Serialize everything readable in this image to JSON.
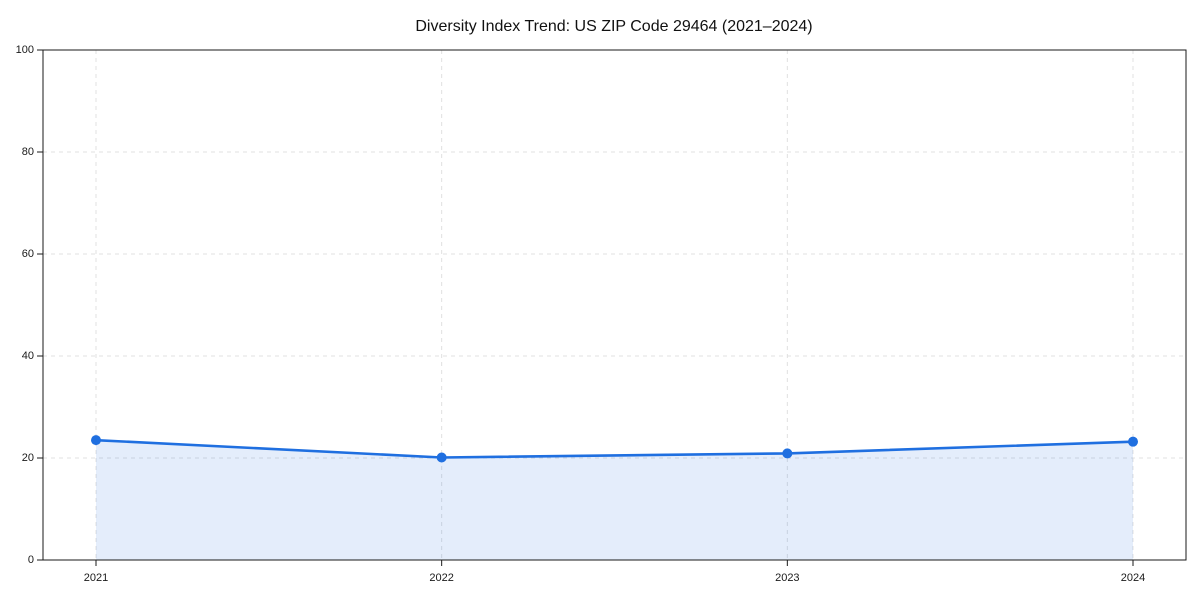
{
  "chart_data": {
    "type": "line",
    "area_fill": true,
    "marker": "circle",
    "title": "Diversity Index Trend: US ZIP Code 29464 (2021–2024)",
    "x": [
      "2021",
      "2022",
      "2023",
      "2024"
    ],
    "values": [
      23.5,
      20.1,
      20.9,
      23.2
    ],
    "xlabel": "",
    "ylabel": "",
    "ylim": [
      0,
      100
    ],
    "yticks": [
      0,
      20,
      40,
      60,
      80,
      100
    ],
    "grid": {
      "visible": true,
      "style": "dashed",
      "axes": "both"
    },
    "legend": "none",
    "colors": {
      "line": "#1f6fe0",
      "marker": "#1f6fe0",
      "fill": "rgba(31,111,224,0.12)",
      "grid": "#e0e0e0",
      "axis": "#1a1a1a",
      "background": "#ffffff"
    }
  }
}
